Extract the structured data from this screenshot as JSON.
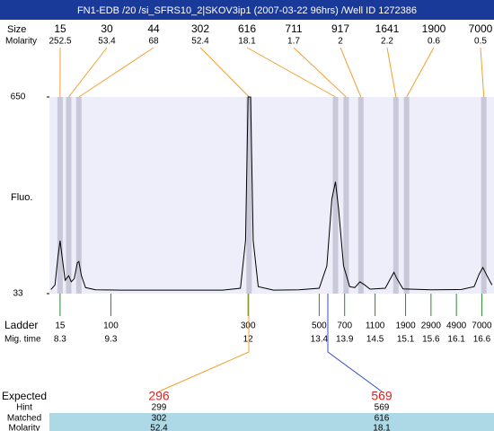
{
  "title": "FN1-EDB /20 /si_SFRS10_2|SKOV3ip1 (2007-03-22 96hrs) /Well ID 1272386",
  "chart_data": {
    "type": "line",
    "ylabel": "Fluo.",
    "ylim": [
      33,
      650
    ],
    "yticks": [
      33,
      650
    ],
    "xlim": [
      8.09,
      16.84
    ],
    "color": "#000000",
    "plot_color": "#eeeefa",
    "band_color": "#c8c8d8",
    "x": [
      8.12,
      8.2,
      8.26,
      8.3,
      8.34,
      8.4,
      8.47,
      8.52,
      8.58,
      8.64,
      8.67,
      8.72,
      8.8,
      9.0,
      9.5,
      10.5,
      11.5,
      11.85,
      11.95,
      12.0,
      12.05,
      12.1,
      12.2,
      12.5,
      13.0,
      13.4,
      13.55,
      13.65,
      13.72,
      13.78,
      13.88,
      14.0,
      14.1,
      14.2,
      14.28,
      14.4,
      14.7,
      14.82,
      14.87,
      14.93,
      15.05,
      15.6,
      16.2,
      16.45,
      16.55,
      16.62,
      16.7,
      16.8
    ],
    "values": [
      46,
      60,
      150,
      199,
      150,
      75,
      89,
      70,
      80,
      130,
      134,
      90,
      52,
      45,
      44,
      44,
      44,
      50,
      200,
      650,
      650,
      200,
      55,
      44,
      45,
      50,
      120,
      330,
      384,
      300,
      120,
      55,
      52,
      70,
      62,
      47,
      50,
      85,
      100,
      80,
      48,
      45,
      46,
      55,
      95,
      115,
      90,
      60
    ],
    "peaks": {
      "size_label": "Size",
      "molarity_label": "Molarity",
      "sizes": [
        15,
        30,
        44,
        302,
        616,
        711,
        917,
        1641,
        1900,
        7000
      ],
      "molarity": [
        252.5,
        53.4,
        68,
        52.4,
        18.1,
        1.7,
        2,
        2.2,
        0.6,
        0.5
      ],
      "x": [
        8.3,
        8.47,
        8.67,
        12.02,
        13.72,
        13.93,
        14.22,
        14.91,
        15.12,
        16.64
      ]
    },
    "ladder": {
      "label": "Ladder",
      "time_label": "Mig. time",
      "sizes": [
        15,
        100,
        300,
        500,
        700,
        1100,
        1900,
        2900,
        4900,
        7000
      ],
      "times": [
        8.3,
        9.3,
        12,
        13.4,
        13.9,
        14.5,
        15.1,
        15.6,
        16.1,
        16.6
      ]
    },
    "table": {
      "rows": [
        [
          "Expected",
          296,
          569
        ],
        [
          "Hint",
          299,
          569
        ],
        [
          "Matched",
          302,
          616
        ],
        [
          "Molarity",
          52.4,
          18.1
        ]
      ]
    }
  }
}
